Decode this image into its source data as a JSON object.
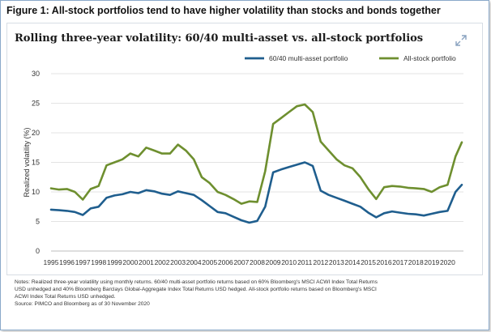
{
  "figure_title": "Figure 1: All-stock portfolios tend to have higher volatility than stocks and bonds together",
  "icons": {
    "expand": "expand-icon"
  },
  "colors": {
    "multi_asset": "#1f5e8e",
    "all_stock": "#6e8f2f",
    "grid": "#e3e3e3"
  },
  "chart_data": {
    "type": "line",
    "title": "Rolling three-year volatility: 60/40 multi-asset  vs. all-stock portfolios",
    "xlabel": "",
    "ylabel": "Realized volatility (%)",
    "xlim": [
      1995,
      2021
    ],
    "ylim": [
      0,
      30
    ],
    "yticks": [
      0,
      5,
      10,
      15,
      20,
      25,
      30
    ],
    "xticks": [
      "1995",
      "1996",
      "1997",
      "1998",
      "1999",
      "2000",
      "2001",
      "2002",
      "2003",
      "2004",
      "2005",
      "2006",
      "2007",
      "2008",
      "2009",
      "2010",
      "2011",
      "2012",
      "2013",
      "2014",
      "2015",
      "2016",
      "2017",
      "2018",
      "2019",
      "2020"
    ],
    "grid": "horizontal",
    "legend": "top-center",
    "series": [
      {
        "name": "60/40 multi-asset portfolio",
        "x": [
          1995,
          1995.5,
          1996,
          1996.5,
          1997,
          1997.5,
          1998,
          1998.5,
          1999,
          1999.5,
          2000,
          2000.5,
          2001,
          2001.5,
          2002,
          2002.5,
          2003,
          2003.5,
          2004,
          2004.5,
          2005,
          2005.5,
          2006,
          2006.5,
          2007,
          2007.5,
          2008,
          2008.5,
          2009,
          2009.5,
          2010,
          2010.5,
          2011,
          2011.5,
          2012,
          2012.5,
          2013,
          2013.5,
          2014,
          2014.5,
          2015,
          2015.5,
          2016,
          2016.5,
          2017,
          2017.5,
          2018,
          2018.5,
          2019,
          2019.5,
          2020,
          2020.5,
          2020.9
        ],
        "values": [
          7.0,
          6.9,
          6.8,
          6.6,
          6.1,
          7.2,
          7.5,
          9.0,
          9.4,
          9.6,
          10.0,
          9.8,
          10.3,
          10.1,
          9.7,
          9.5,
          10.1,
          9.8,
          9.5,
          8.6,
          7.6,
          6.6,
          6.4,
          5.8,
          5.2,
          4.8,
          5.1,
          7.5,
          13.3,
          13.8,
          14.2,
          14.6,
          15.0,
          14.4,
          10.2,
          9.5,
          9.0,
          8.5,
          8.0,
          7.5,
          6.5,
          5.7,
          6.4,
          6.7,
          6.5,
          6.3,
          6.2,
          6.0,
          6.3,
          6.6,
          6.8,
          10.0,
          11.2
        ]
      },
      {
        "name": "All-stock portfolio",
        "x": [
          1995,
          1995.5,
          1996,
          1996.5,
          1997,
          1997.5,
          1998,
          1998.5,
          1999,
          1999.5,
          2000,
          2000.5,
          2001,
          2001.5,
          2002,
          2002.5,
          2003,
          2003.5,
          2004,
          2004.5,
          2005,
          2005.5,
          2006,
          2006.5,
          2007,
          2007.5,
          2008,
          2008.5,
          2009,
          2009.5,
          2010,
          2010.5,
          2011,
          2011.5,
          2012,
          2012.5,
          2013,
          2013.5,
          2014,
          2014.5,
          2015,
          2015.5,
          2016,
          2016.5,
          2017,
          2017.5,
          2018,
          2018.5,
          2019,
          2019.5,
          2020,
          2020.5,
          2020.9
        ],
        "values": [
          10.6,
          10.4,
          10.5,
          10.0,
          8.7,
          10.5,
          11.0,
          14.5,
          15.0,
          15.5,
          16.5,
          16.0,
          17.5,
          17.0,
          16.5,
          16.5,
          18.0,
          17.0,
          15.5,
          12.5,
          11.5,
          10.0,
          9.5,
          8.8,
          8.0,
          8.4,
          8.3,
          13.5,
          21.5,
          22.5,
          23.5,
          24.5,
          24.8,
          23.5,
          18.5,
          17.0,
          15.5,
          14.5,
          14.0,
          12.5,
          10.5,
          8.8,
          10.8,
          11.0,
          10.9,
          10.7,
          10.6,
          10.5,
          10.0,
          10.8,
          11.2,
          16.0,
          18.4
        ]
      }
    ]
  },
  "notes": {
    "line1": "Notes: Realized three-year volatility using monthly returns. 60/40 multi-asset portfolio returns  based on 60% Bloomberg's MSCI ACWI Index Total Returns",
    "line2": "USD unhedged and 40% Bloomberg Barclays Global-Aggregate Index Total Returns USD hedged.  All-stock portfolio returns based on Bloomberg's MSCI",
    "line3": "ACWI Index Total Returns USD unhedged.",
    "line4": "Source: PIMCO and Bloomberg as of 30 November 2020"
  }
}
